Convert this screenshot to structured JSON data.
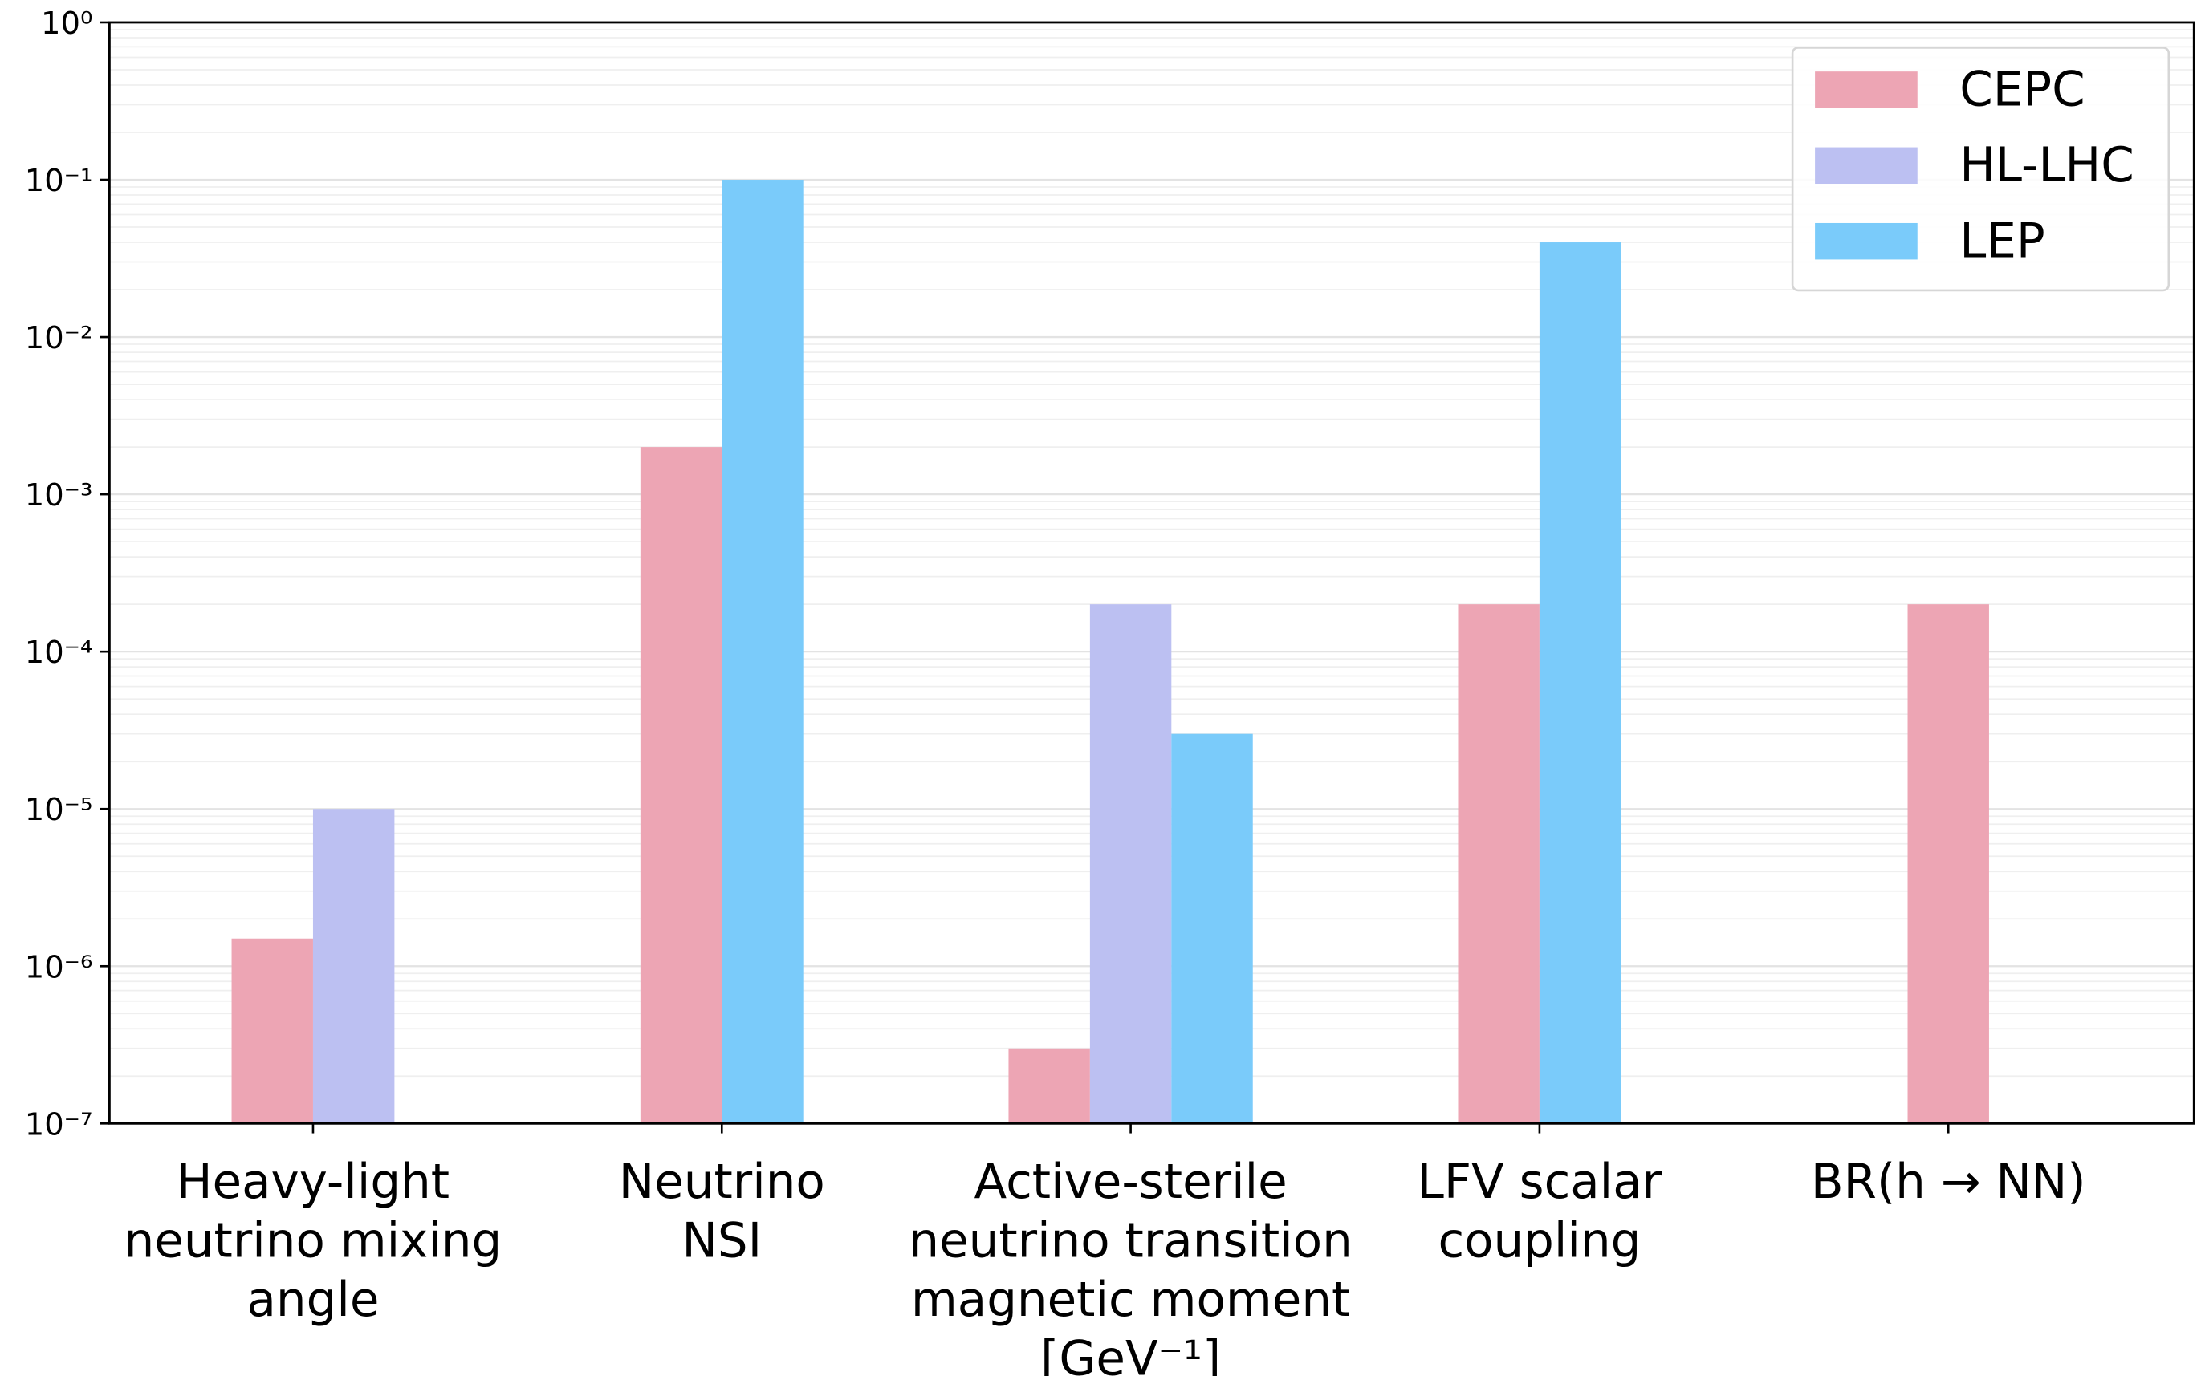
{
  "chart_data": {
    "type": "bar",
    "log_scale": true,
    "grid": true,
    "minor_grid": true,
    "legend": "upper right",
    "categories": [
      "Heavy-light\nneutrino mixing\nangle",
      "Neutrino\nNSI",
      "Active-sterile\nneutrino transition\nmagnetic moment\n[GeV⁻¹]",
      "LFV scalar\ncoupling",
      "BR(h → NN)"
    ],
    "series": [
      {
        "name": "CEPC",
        "color": "#eda5b4",
        "values": [
          1.5e-06,
          0.002,
          3e-07,
          0.0002,
          0.0002
        ]
      },
      {
        "name": "HL-LHC",
        "color": "#bcc0f2",
        "values": [
          1e-05,
          null,
          0.0002,
          null,
          null
        ]
      },
      {
        "name": "LEP",
        "color": "#7acbfa",
        "values": [
          null,
          0.1,
          3e-05,
          0.04,
          null
        ]
      }
    ],
    "ylim": [
      1e-07,
      1
    ],
    "yticks": [
      {
        "value": 1e-07,
        "label": "10⁻⁷"
      },
      {
        "value": 1e-06,
        "label": "10⁻⁶"
      },
      {
        "value": 1e-05,
        "label": "10⁻⁵"
      },
      {
        "value": 0.0001,
        "label": "10⁻⁴"
      },
      {
        "value": 0.001,
        "label": "10⁻³"
      },
      {
        "value": 0.01,
        "label": "10⁻²"
      },
      {
        "value": 0.1,
        "label": "10⁻¹"
      },
      {
        "value": 1,
        "label": "10⁰"
      }
    ]
  }
}
